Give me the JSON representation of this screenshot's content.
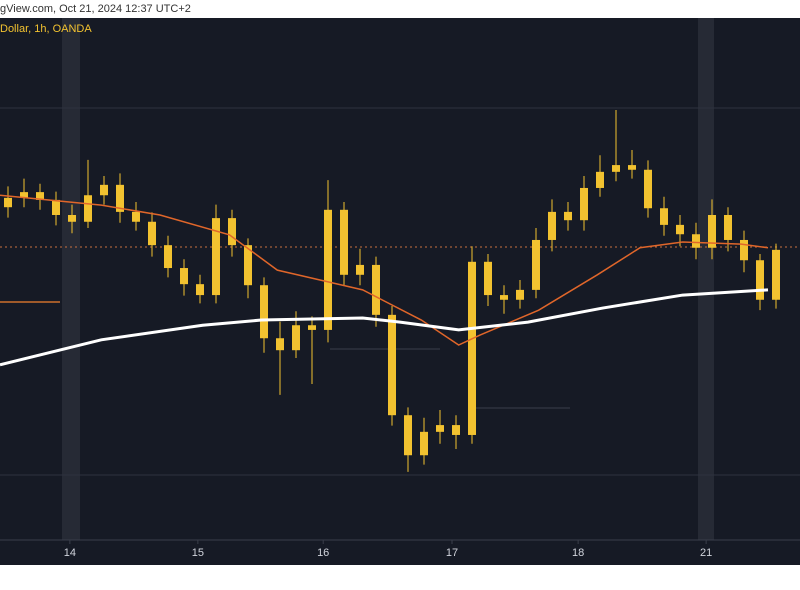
{
  "header": "gView.com, Oct 21, 2024 12:37 UTC+2",
  "chart_data": {
    "type": "candlestick",
    "legend": "Dollar, 1h, OANDA",
    "color": "#f2c230",
    "x": [
      1.5,
      4.5,
      7.5,
      10.5,
      13.5,
      16.5,
      19.5,
      22.5,
      25.5,
      28.5,
      31.5,
      34.5,
      37.5,
      40.5,
      43.5,
      46.5,
      49.5,
      52.5,
      55.5,
      58.5,
      61.5,
      64.5,
      67.5,
      70.5,
      73.5,
      76.5,
      79.5,
      82.5,
      85.5,
      88.5,
      91.5,
      94.5,
      97.5,
      100.5,
      103.5,
      106.5,
      109.5,
      112.5,
      115.5,
      118.5,
      121.5,
      124.5,
      127.5,
      130.5,
      133.5,
      136.5,
      139.5,
      142.5,
      145.5
    ],
    "open": [
      64.0,
      65.8,
      66.9,
      65.4,
      62.5,
      61.2,
      66.3,
      68.3,
      63.1,
      61.2,
      56.7,
      52.3,
      49.2,
      47.1,
      61.9,
      56.7,
      49.0,
      38.8,
      36.5,
      41.3,
      40.4,
      63.5,
      51.0,
      52.9,
      43.3,
      24.0,
      16.3,
      20.8,
      22.1,
      20.2,
      53.5,
      47.1,
      46.2,
      48.1,
      57.7,
      63.1,
      61.5,
      67.7,
      70.8,
      72.1,
      71.2,
      63.8,
      60.6,
      58.8,
      56.2,
      62.5,
      57.7,
      53.8,
      46.2
    ],
    "high": [
      68.0,
      69.5,
      68.5,
      67.0,
      64.5,
      73.1,
      70.0,
      70.5,
      65.0,
      63.0,
      58.5,
      54.0,
      51.0,
      64.5,
      63.5,
      58.0,
      50.5,
      42.0,
      44.0,
      43.0,
      69.2,
      65.0,
      56.0,
      54.5,
      45.0,
      25.5,
      23.5,
      25.0,
      24.0,
      56.5,
      55.0,
      49.0,
      50.0,
      60.0,
      65.5,
      65.0,
      70.0,
      74.0,
      82.7,
      75.0,
      73.0,
      66.0,
      62.5,
      61.0,
      65.5,
      64.0,
      59.5,
      55.0,
      57.0
    ],
    "low": [
      62.0,
      64.0,
      63.5,
      60.5,
      59.0,
      60.0,
      64.5,
      61.0,
      59.5,
      54.5,
      50.5,
      47.0,
      45.5,
      45.5,
      54.5,
      46.5,
      36.0,
      27.9,
      35.0,
      30.0,
      38.0,
      49.0,
      49.0,
      41.0,
      22.0,
      13.1,
      14.5,
      18.5,
      17.5,
      18.5,
      45.0,
      43.5,
      44.5,
      46.5,
      55.5,
      59.5,
      59.5,
      66.0,
      69.0,
      69.5,
      62.0,
      58.5,
      56.5,
      54.0,
      54.0,
      55.5,
      51.5,
      44.2,
      44.5
    ],
    "close": [
      65.8,
      66.9,
      65.4,
      62.5,
      61.2,
      66.3,
      68.3,
      63.1,
      61.2,
      56.7,
      52.3,
      49.2,
      47.1,
      61.9,
      56.7,
      49.0,
      38.8,
      36.5,
      41.3,
      40.4,
      63.5,
      51.0,
      52.9,
      43.3,
      24.0,
      16.3,
      20.8,
      22.1,
      20.2,
      53.5,
      47.1,
      46.2,
      48.1,
      57.7,
      63.1,
      61.5,
      67.7,
      70.8,
      72.1,
      71.2,
      63.8,
      60.6,
      58.8,
      56.2,
      62.5,
      57.7,
      53.8,
      46.2,
      55.8
    ],
    "series": [
      {
        "color": "#e0662a",
        "x": [
          0,
          19,
          30,
          43,
          52,
          60,
          68,
          79,
          86,
          90,
          101,
          112,
          120,
          128,
          139,
          144
        ],
        "values": [
          66.3,
          64.4,
          62.5,
          58.7,
          51.9,
          50.0,
          48.1,
          42.3,
          37.5,
          39.4,
          44.2,
          51.0,
          56.2,
          57.3,
          56.9,
          56.2
        ]
      },
      {
        "color": "#ffffff",
        "x": [
          0,
          19,
          38,
          49,
          68,
          75,
          86,
          99,
          113,
          128,
          144
        ],
        "values": [
          33.7,
          38.5,
          41.3,
          42.3,
          42.7,
          41.9,
          40.4,
          41.9,
          44.6,
          47.1,
          48.1
        ]
      }
    ],
    "xlim": [
      0,
      150
    ],
    "ylim": [
      0,
      100
    ],
    "xticks": [
      {
        "value": 13.1,
        "label": "14"
      },
      {
        "value": 37.1,
        "label": "15"
      },
      {
        "value": 60.6,
        "label": "16"
      },
      {
        "value": 84.75,
        "label": "17"
      },
      {
        "value": 108.4,
        "label": "18"
      },
      {
        "value": 132.4,
        "label": "21"
      }
    ]
  }
}
